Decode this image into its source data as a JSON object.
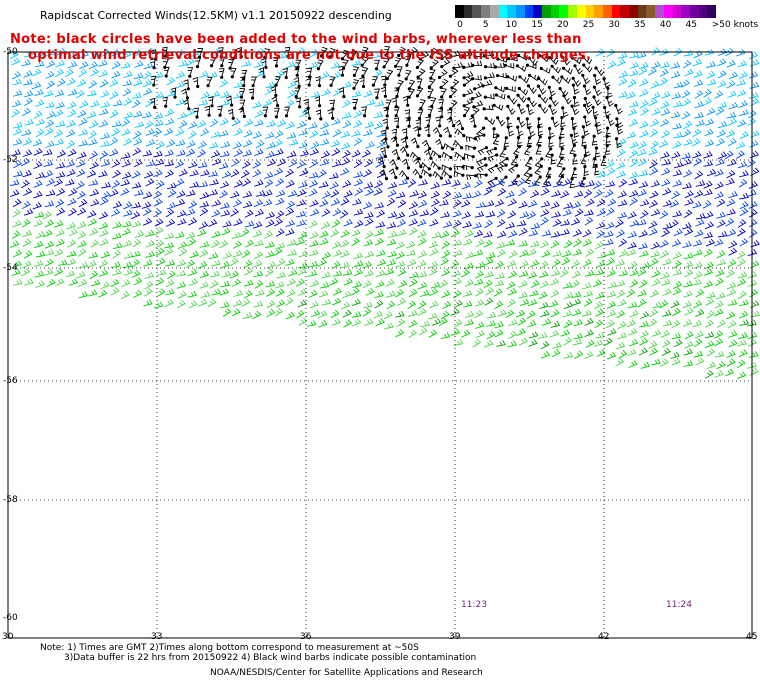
{
  "title": "Rapidscat Corrected Winds(12.5KM) v1.1 20150922 descending",
  "note": {
    "line1": "Note: black circles have been added to the wind barbs, wherever less than",
    "line2": "optimal wind retrieval conditions are not due to the ISS altitude changes."
  },
  "colorbar": {
    "colors": [
      "#000000",
      "#2a2a2a",
      "#555555",
      "#7f7f7f",
      "#a9a9a9",
      "#00ffff",
      "#00c8ff",
      "#0096ff",
      "#0040ff",
      "#0000c8",
      "#00a000",
      "#00d000",
      "#00ff00",
      "#a0ff00",
      "#ffff00",
      "#ffd000",
      "#ffa000",
      "#ff6000",
      "#ff0000",
      "#c00000",
      "#900000",
      "#6a3a1a",
      "#8a5a2a",
      "#b050d0",
      "#ff00ff",
      "#d000d0",
      "#a000c0",
      "#7000a0",
      "#500080",
      "#300060"
    ],
    "labels": [
      "0",
      "5",
      "10",
      "15",
      "20",
      "25",
      "30",
      "35",
      "40",
      "45",
      ">50 knots"
    ]
  },
  "map": {
    "lon_ticks": [
      "30",
      "33",
      "36",
      "39",
      "42",
      "45"
    ],
    "lat_ticks": [
      "-50",
      "-52",
      "-54",
      "-56",
      "-58",
      "-60"
    ],
    "time_labels": [
      "11:23",
      "11:24"
    ]
  },
  "footer": {
    "line1": "Note: 1) Times are GMT 2)Times along bottom correspond to measurement at ~50S",
    "line2": "3)Data buffer is 22 hrs from 20150922 4) Black wind barbs indicate possible contamination",
    "line3": "NOAA/NESDIS/Center for Satellite Applications and Research"
  }
}
